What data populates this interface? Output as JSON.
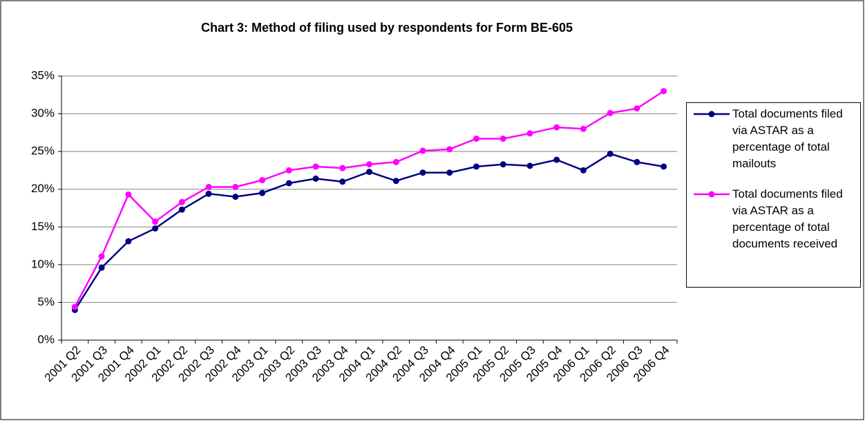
{
  "chart_data": {
    "type": "line",
    "title": "Chart 3: Method of filing used by respondents for Form BE-605",
    "categories": [
      "2001 Q2",
      "2001 Q3",
      "2001 Q4",
      "2002 Q1",
      "2002 Q2",
      "2002 Q3",
      "2002 Q4",
      "2003 Q1",
      "2003 Q2",
      "2003 Q3",
      "2003 Q4",
      "2004 Q1",
      "2004 Q2",
      "2004 Q3",
      "2004 Q4",
      "2005 Q1",
      "2005 Q2",
      "2005 Q3",
      "2005 Q4",
      "2006 Q1",
      "2006 Q2",
      "2006 Q3",
      "2006 Q4"
    ],
    "series": [
      {
        "name": "Total documents filed via ASTAR as a percentage of total mailouts",
        "color": "#000080",
        "values": [
          4.0,
          9.6,
          13.1,
          14.8,
          17.3,
          19.4,
          19.0,
          19.5,
          20.8,
          21.4,
          21.0,
          22.3,
          21.1,
          22.2,
          22.2,
          23.0,
          23.3,
          23.1,
          23.9,
          22.5,
          24.7,
          23.6,
          23.0
        ]
      },
      {
        "name": "Total documents filed via ASTAR as a percentage of total documents received",
        "color": "#ff00ff",
        "values": [
          4.4,
          11.1,
          19.3,
          15.7,
          18.3,
          20.3,
          20.3,
          21.2,
          22.5,
          23.0,
          22.8,
          23.3,
          23.6,
          25.1,
          25.3,
          26.7,
          26.7,
          27.4,
          28.2,
          28.0,
          30.1,
          30.7,
          33.0
        ]
      }
    ],
    "ylim": [
      0,
      35
    ],
    "yticks": [
      {
        "value": 0,
        "label": "0%"
      },
      {
        "value": 5,
        "label": "5%"
      },
      {
        "value": 10,
        "label": "10%"
      },
      {
        "value": 15,
        "label": "15%"
      },
      {
        "value": 20,
        "label": "20%"
      },
      {
        "value": 25,
        "label": "25%"
      },
      {
        "value": 30,
        "label": "30%"
      },
      {
        "value": 35,
        "label": "35%"
      }
    ],
    "grid": true,
    "legend": "right"
  }
}
